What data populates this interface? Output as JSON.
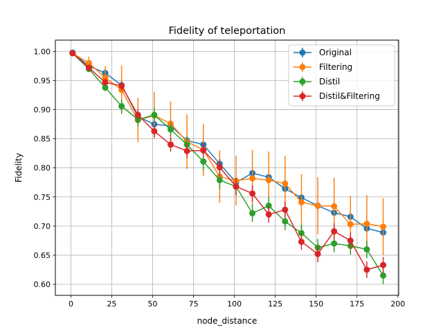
{
  "chart_data": {
    "type": "line",
    "title": "Fidelity of teleportation",
    "xlabel": "node_distance",
    "ylabel": "Fidelity",
    "xlim": [
      -9.5,
      200.5
    ],
    "ylim": [
      0.581,
      1.0195
    ],
    "xticks": [
      0,
      25,
      50,
      75,
      100,
      125,
      150,
      175,
      200
    ],
    "yticks": [
      0.6,
      0.65,
      0.7,
      0.75,
      0.8,
      0.85,
      0.9,
      0.95,
      1.0
    ],
    "xtick_labels": [
      "0",
      "25",
      "50",
      "75",
      "100",
      "125",
      "150",
      "175",
      "200"
    ],
    "ytick_labels": [
      "0.60",
      "0.65",
      "0.70",
      "0.75",
      "0.80",
      "0.85",
      "0.90",
      "0.95",
      "1.00"
    ],
    "grid": true,
    "error_bars": true,
    "legend_position": "top-right",
    "x": [
      1,
      11,
      21,
      31,
      41,
      51,
      61,
      71,
      81,
      91,
      101,
      111,
      121,
      131,
      141,
      151,
      161,
      171,
      181,
      191
    ],
    "series": [
      {
        "name": "Original",
        "color": "#1f77b4",
        "values": [
          0.998,
          0.975,
          0.963,
          0.942,
          0.888,
          0.875,
          0.872,
          0.847,
          0.84,
          0.807,
          0.775,
          0.791,
          0.784,
          0.764,
          0.749,
          0.735,
          0.723,
          0.716,
          0.696,
          0.689
        ],
        "errors": [
          0.003,
          0.005,
          0.005,
          0.006,
          0.006,
          0.006,
          0.006,
          0.006,
          0.006,
          0.006,
          0.006,
          0.006,
          0.006,
          0.006,
          0.006,
          0.006,
          0.006,
          0.006,
          0.006,
          0.006
        ]
      },
      {
        "name": "Filtering",
        "color": "#ff7f0e",
        "values": [
          0.997,
          0.98,
          0.955,
          0.934,
          0.882,
          0.89,
          0.876,
          0.845,
          0.831,
          0.785,
          0.778,
          0.782,
          0.779,
          0.773,
          0.741,
          0.735,
          0.734,
          0.703,
          0.704,
          0.699
        ],
        "errors": [
          0.003,
          0.011,
          0.02,
          0.042,
          0.038,
          0.04,
          0.038,
          0.047,
          0.045,
          0.045,
          0.043,
          0.049,
          0.049,
          0.048,
          0.048,
          0.049,
          0.049,
          0.049,
          0.049,
          0.049
        ]
      },
      {
        "name": "Distil",
        "color": "#2ca02c",
        "values": [
          0.997,
          0.97,
          0.938,
          0.906,
          0.883,
          0.891,
          0.866,
          0.84,
          0.811,
          0.779,
          0.768,
          0.722,
          0.735,
          0.708,
          0.688,
          0.663,
          0.67,
          0.666,
          0.66,
          0.615
        ],
        "errors": [
          0.003,
          0.005,
          0.006,
          0.012,
          0.012,
          0.012,
          0.012,
          0.015,
          0.015,
          0.015,
          0.015,
          0.015,
          0.015,
          0.015,
          0.015,
          0.015,
          0.015,
          0.015,
          0.015,
          0.015
        ]
      },
      {
        "name": "Distil&Filtering",
        "color": "#d62728",
        "values": [
          0.997,
          0.972,
          0.947,
          0.941,
          0.891,
          0.863,
          0.84,
          0.829,
          0.83,
          0.801,
          0.768,
          0.756,
          0.72,
          0.728,
          0.673,
          0.652,
          0.691,
          0.675,
          0.625,
          0.633
        ],
        "errors": [
          0.003,
          0.005,
          0.006,
          0.008,
          0.01,
          0.01,
          0.012,
          0.012,
          0.012,
          0.014,
          0.014,
          0.014,
          0.014,
          0.014,
          0.014,
          0.014,
          0.014,
          0.014,
          0.014,
          0.014
        ]
      }
    ]
  }
}
